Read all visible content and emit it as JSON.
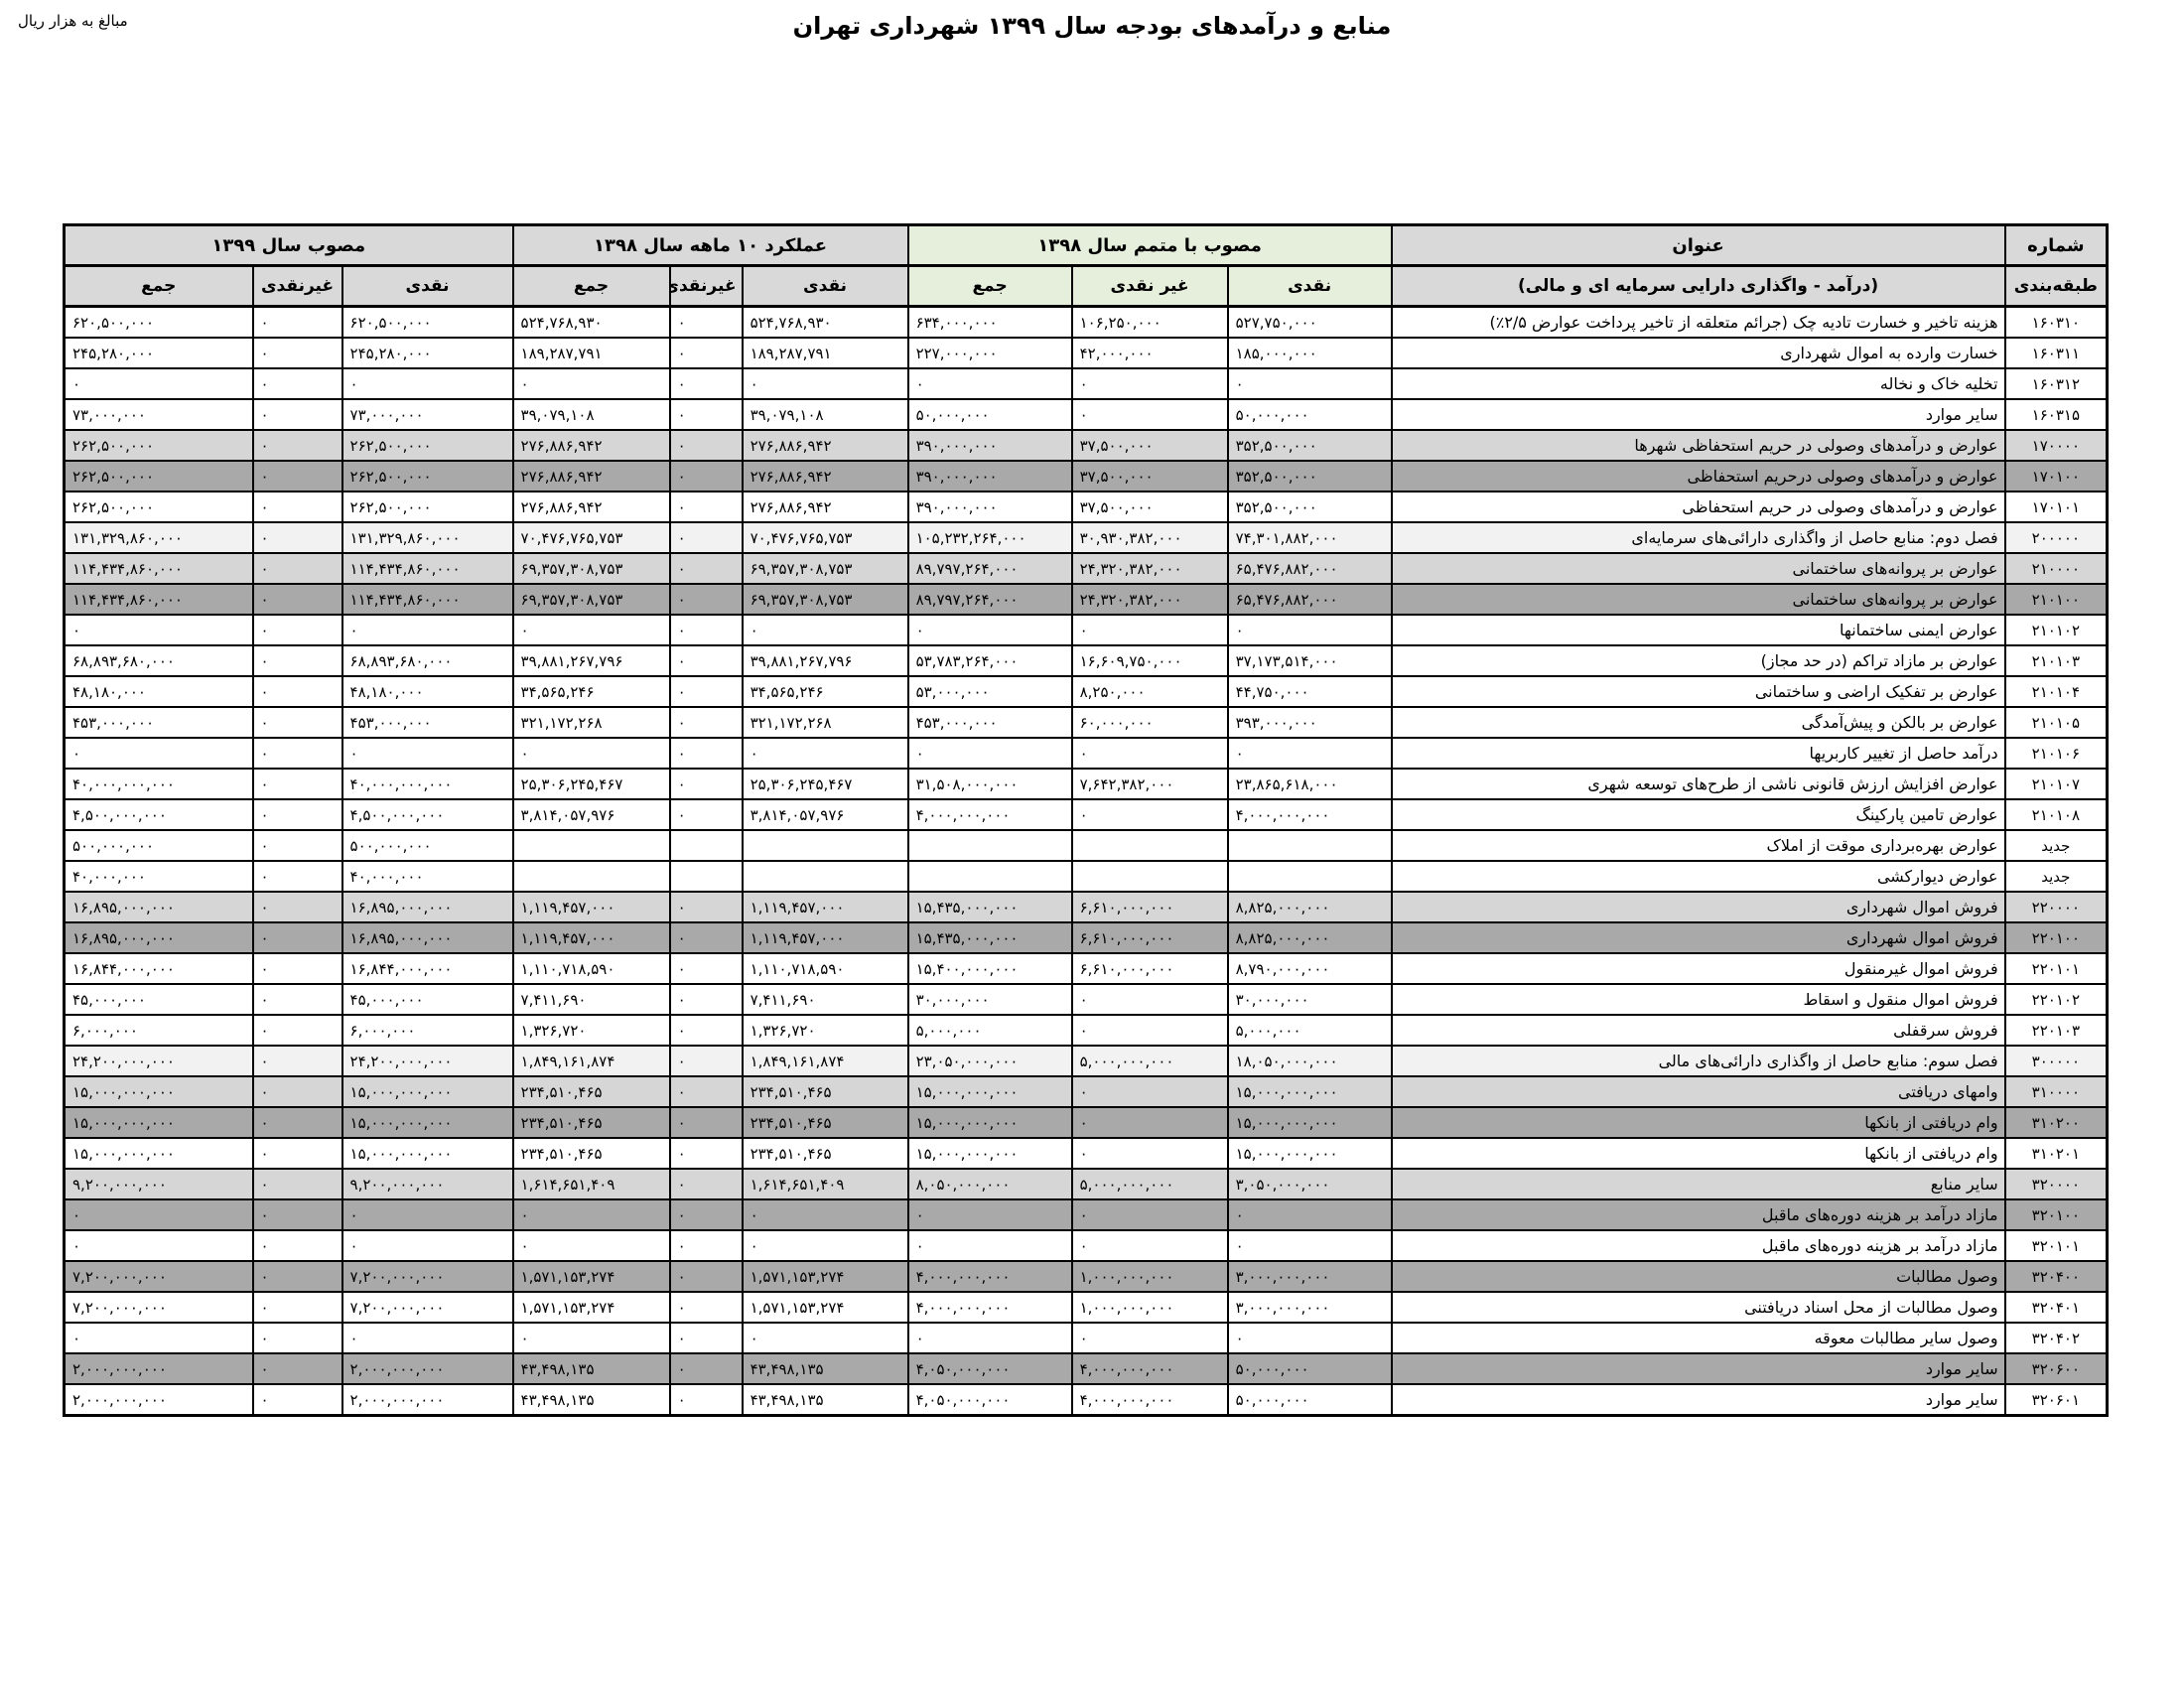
{
  "meta": {
    "title": "منابع و درآمدهای بودجه سال ۱۳۹۹ شهرداری تهران",
    "unit_note": "مبالغ به هزار ریال"
  },
  "colors": {
    "header_gray": "#d9d9d9",
    "header_green": "#e6efdc",
    "row_chapter": "#f2f2f2",
    "row_group": "#d6d6d6",
    "row_subgroup": "#a9a9a9"
  },
  "table": {
    "code_header": {
      "line1": "شماره",
      "line2": "طبقه‌بندی"
    },
    "title_header": {
      "line1": "عنوان",
      "line2": "(درآمد - واگذاری دارایی سرمایه ای و مالی)"
    },
    "col_groups": [
      {
        "label": "مصوب با متمم سال ۱۳۹۸",
        "cols": [
          "نقدی",
          "غیر نقدی",
          "جمع"
        ]
      },
      {
        "label": "عملکرد ۱۰ ماهه سال ۱۳۹۸",
        "cols": [
          "نقدی",
          "غیرنقدی",
          "جمع"
        ]
      },
      {
        "label": "مصوب سال ۱۳۹۹",
        "cols": [
          "نقدی",
          "غیرنقدی",
          "جمع"
        ]
      }
    ],
    "rows": [
      {
        "code": "۱۶۰۳۱۰",
        "title": "هزینه تاخیر و خسارت تادیه چک (جرائم متعلقه از تاخیر پرداخت عوارض ۲/۵٪)",
        "level": "leaf",
        "y1398_supp": {
          "cash": "۵۲۷,۷۵۰,۰۰۰",
          "noncash": "۱۰۶,۲۵۰,۰۰۰",
          "total": "۶۳۴,۰۰۰,۰۰۰"
        },
        "y1398_perf": {
          "cash": "۵۲۴,۷۶۸,۹۳۰",
          "noncash": "۰",
          "total": "۵۲۴,۷۶۸,۹۳۰"
        },
        "y1399": {
          "cash": "۶۲۰,۵۰۰,۰۰۰",
          "noncash": "۰",
          "total": "۶۲۰,۵۰۰,۰۰۰"
        }
      },
      {
        "code": "۱۶۰۳۱۱",
        "title": "خسارت وارده به اموال شهرداری",
        "level": "leaf",
        "y1398_supp": {
          "cash": "۱۸۵,۰۰۰,۰۰۰",
          "noncash": "۴۲,۰۰۰,۰۰۰",
          "total": "۲۲۷,۰۰۰,۰۰۰"
        },
        "y1398_perf": {
          "cash": "۱۸۹,۲۸۷,۷۹۱",
          "noncash": "۰",
          "total": "۱۸۹,۲۸۷,۷۹۱"
        },
        "y1399": {
          "cash": "۲۴۵,۲۸۰,۰۰۰",
          "noncash": "۰",
          "total": "۲۴۵,۲۸۰,۰۰۰"
        }
      },
      {
        "code": "۱۶۰۳۱۲",
        "title": "تخلیه خاک و نخاله",
        "level": "leaf",
        "y1398_supp": {
          "cash": "۰",
          "noncash": "۰",
          "total": "۰"
        },
        "y1398_perf": {
          "cash": "۰",
          "noncash": "۰",
          "total": "۰"
        },
        "y1399": {
          "cash": "۰",
          "noncash": "۰",
          "total": "۰"
        }
      },
      {
        "code": "۱۶۰۳۱۵",
        "title": "سایر موارد",
        "level": "leaf",
        "y1398_supp": {
          "cash": "۵۰,۰۰۰,۰۰۰",
          "noncash": "۰",
          "total": "۵۰,۰۰۰,۰۰۰"
        },
        "y1398_perf": {
          "cash": "۳۹,۰۷۹,۱۰۸",
          "noncash": "۰",
          "total": "۳۹,۰۷۹,۱۰۸"
        },
        "y1399": {
          "cash": "۷۳,۰۰۰,۰۰۰",
          "noncash": "۰",
          "total": "۷۳,۰۰۰,۰۰۰"
        }
      },
      {
        "code": "۱۷۰۰۰۰",
        "title": "عوارض و درآمدهای وصولی در حریم استحفاظی شهرها",
        "level": "group",
        "y1398_supp": {
          "cash": "۳۵۲,۵۰۰,۰۰۰",
          "noncash": "۳۷,۵۰۰,۰۰۰",
          "total": "۳۹۰,۰۰۰,۰۰۰"
        },
        "y1398_perf": {
          "cash": "۲۷۶,۸۸۶,۹۴۲",
          "noncash": "۰",
          "total": "۲۷۶,۸۸۶,۹۴۲"
        },
        "y1399": {
          "cash": "۲۶۲,۵۰۰,۰۰۰",
          "noncash": "۰",
          "total": "۲۶۲,۵۰۰,۰۰۰"
        }
      },
      {
        "code": "۱۷۰۱۰۰",
        "title": "عوارض و درآمدهای وصولی درحریم استحفاظی",
        "level": "subgroup",
        "y1398_supp": {
          "cash": "۳۵۲,۵۰۰,۰۰۰",
          "noncash": "۳۷,۵۰۰,۰۰۰",
          "total": "۳۹۰,۰۰۰,۰۰۰"
        },
        "y1398_perf": {
          "cash": "۲۷۶,۸۸۶,۹۴۲",
          "noncash": "۰",
          "total": "۲۷۶,۸۸۶,۹۴۲"
        },
        "y1399": {
          "cash": "۲۶۲,۵۰۰,۰۰۰",
          "noncash": "۰",
          "total": "۲۶۲,۵۰۰,۰۰۰"
        }
      },
      {
        "code": "۱۷۰۱۰۱",
        "title": "عوارض و درآمدهای وصولی در حریم استحفاظی",
        "level": "leaf",
        "y1398_supp": {
          "cash": "۳۵۲,۵۰۰,۰۰۰",
          "noncash": "۳۷,۵۰۰,۰۰۰",
          "total": "۳۹۰,۰۰۰,۰۰۰"
        },
        "y1398_perf": {
          "cash": "۲۷۶,۸۸۶,۹۴۲",
          "noncash": "۰",
          "total": "۲۷۶,۸۸۶,۹۴۲"
        },
        "y1399": {
          "cash": "۲۶۲,۵۰۰,۰۰۰",
          "noncash": "۰",
          "total": "۲۶۲,۵۰۰,۰۰۰"
        }
      },
      {
        "code": "۲۰۰۰۰۰",
        "title": "فصل دوم: منابع حاصل از واگذاری دارائی‌های سرمایه‌ای",
        "level": "chapter",
        "y1398_supp": {
          "cash": "۷۴,۳۰۱,۸۸۲,۰۰۰",
          "noncash": "۳۰,۹۳۰,۳۸۲,۰۰۰",
          "total": "۱۰۵,۲۳۲,۲۶۴,۰۰۰"
        },
        "y1398_perf": {
          "cash": "۷۰,۴۷۶,۷۶۵,۷۵۳",
          "noncash": "۰",
          "total": "۷۰,۴۷۶,۷۶۵,۷۵۳"
        },
        "y1399": {
          "cash": "۱۳۱,۳۲۹,۸۶۰,۰۰۰",
          "noncash": "۰",
          "total": "۱۳۱,۳۲۹,۸۶۰,۰۰۰"
        }
      },
      {
        "code": "۲۱۰۰۰۰",
        "title": "عوارض بر پروانه‌های ساختمانی",
        "level": "group",
        "y1398_supp": {
          "cash": "۶۵,۴۷۶,۸۸۲,۰۰۰",
          "noncash": "۲۴,۳۲۰,۳۸۲,۰۰۰",
          "total": "۸۹,۷۹۷,۲۶۴,۰۰۰"
        },
        "y1398_perf": {
          "cash": "۶۹,۳۵۷,۳۰۸,۷۵۳",
          "noncash": "۰",
          "total": "۶۹,۳۵۷,۳۰۸,۷۵۳"
        },
        "y1399": {
          "cash": "۱۱۴,۴۳۴,۸۶۰,۰۰۰",
          "noncash": "۰",
          "total": "۱۱۴,۴۳۴,۸۶۰,۰۰۰"
        }
      },
      {
        "code": "۲۱۰۱۰۰",
        "title": "عوارض بر پروانه‌های ساختمانی",
        "level": "subgroup",
        "y1398_supp": {
          "cash": "۶۵,۴۷۶,۸۸۲,۰۰۰",
          "noncash": "۲۴,۳۲۰,۳۸۲,۰۰۰",
          "total": "۸۹,۷۹۷,۲۶۴,۰۰۰"
        },
        "y1398_perf": {
          "cash": "۶۹,۳۵۷,۳۰۸,۷۵۳",
          "noncash": "۰",
          "total": "۶۹,۳۵۷,۳۰۸,۷۵۳"
        },
        "y1399": {
          "cash": "۱۱۴,۴۳۴,۸۶۰,۰۰۰",
          "noncash": "۰",
          "total": "۱۱۴,۴۳۴,۸۶۰,۰۰۰"
        }
      },
      {
        "code": "۲۱۰۱۰۲",
        "title": "عوارض ایمنی ساختمانها",
        "level": "leaf",
        "y1398_supp": {
          "cash": "۰",
          "noncash": "۰",
          "total": "۰"
        },
        "y1398_perf": {
          "cash": "۰",
          "noncash": "۰",
          "total": "۰"
        },
        "y1399": {
          "cash": "۰",
          "noncash": "۰",
          "total": "۰"
        }
      },
      {
        "code": "۲۱۰۱۰۳",
        "title": "عوارض بر مازاد تراکم (در حد مجاز)",
        "level": "leaf",
        "y1398_supp": {
          "cash": "۳۷,۱۷۳,۵۱۴,۰۰۰",
          "noncash": "۱۶,۶۰۹,۷۵۰,۰۰۰",
          "total": "۵۳,۷۸۳,۲۶۴,۰۰۰"
        },
        "y1398_perf": {
          "cash": "۳۹,۸۸۱,۲۶۷,۷۹۶",
          "noncash": "۰",
          "total": "۳۹,۸۸۱,۲۶۷,۷۹۶"
        },
        "y1399": {
          "cash": "۶۸,۸۹۳,۶۸۰,۰۰۰",
          "noncash": "۰",
          "total": "۶۸,۸۹۳,۶۸۰,۰۰۰"
        }
      },
      {
        "code": "۲۱۰۱۰۴",
        "title": "عوارض بر تفکیک اراضی و ساختمانی",
        "level": "leaf",
        "y1398_supp": {
          "cash": "۴۴,۷۵۰,۰۰۰",
          "noncash": "۸,۲۵۰,۰۰۰",
          "total": "۵۳,۰۰۰,۰۰۰"
        },
        "y1398_perf": {
          "cash": "۳۴,۵۶۵,۲۴۶",
          "noncash": "۰",
          "total": "۳۴,۵۶۵,۲۴۶"
        },
        "y1399": {
          "cash": "۴۸,۱۸۰,۰۰۰",
          "noncash": "۰",
          "total": "۴۸,۱۸۰,۰۰۰"
        }
      },
      {
        "code": "۲۱۰۱۰۵",
        "title": "عوارض بر بالکن و پیش‌آمدگی",
        "level": "leaf",
        "y1398_supp": {
          "cash": "۳۹۳,۰۰۰,۰۰۰",
          "noncash": "۶۰,۰۰۰,۰۰۰",
          "total": "۴۵۳,۰۰۰,۰۰۰"
        },
        "y1398_perf": {
          "cash": "۳۲۱,۱۷۲,۲۶۸",
          "noncash": "۰",
          "total": "۳۲۱,۱۷۲,۲۶۸"
        },
        "y1399": {
          "cash": "۴۵۳,۰۰۰,۰۰۰",
          "noncash": "۰",
          "total": "۴۵۳,۰۰۰,۰۰۰"
        }
      },
      {
        "code": "۲۱۰۱۰۶",
        "title": "درآمد حاصل از تغییر کاربریها",
        "level": "leaf",
        "y1398_supp": {
          "cash": "۰",
          "noncash": "۰",
          "total": "۰"
        },
        "y1398_perf": {
          "cash": "۰",
          "noncash": "۰",
          "total": "۰"
        },
        "y1399": {
          "cash": "۰",
          "noncash": "۰",
          "total": "۰"
        }
      },
      {
        "code": "۲۱۰۱۰۷",
        "title": "عوارض افزایش ارزش قانونی ناشی از طرح‌های توسعه شهری",
        "level": "leaf",
        "y1398_supp": {
          "cash": "۲۳,۸۶۵,۶۱۸,۰۰۰",
          "noncash": "۷,۶۴۲,۳۸۲,۰۰۰",
          "total": "۳۱,۵۰۸,۰۰۰,۰۰۰"
        },
        "y1398_perf": {
          "cash": "۲۵,۳۰۶,۲۴۵,۴۶۷",
          "noncash": "۰",
          "total": "۲۵,۳۰۶,۲۴۵,۴۶۷"
        },
        "y1399": {
          "cash": "۴۰,۰۰۰,۰۰۰,۰۰۰",
          "noncash": "۰",
          "total": "۴۰,۰۰۰,۰۰۰,۰۰۰"
        }
      },
      {
        "code": "۲۱۰۱۰۸",
        "title": "عوارض تامین پارکینگ",
        "level": "leaf",
        "y1398_supp": {
          "cash": "۴,۰۰۰,۰۰۰,۰۰۰",
          "noncash": "۰",
          "total": "۴,۰۰۰,۰۰۰,۰۰۰"
        },
        "y1398_perf": {
          "cash": "۳,۸۱۴,۰۵۷,۹۷۶",
          "noncash": "۰",
          "total": "۳,۸۱۴,۰۵۷,۹۷۶"
        },
        "y1399": {
          "cash": "۴,۵۰۰,۰۰۰,۰۰۰",
          "noncash": "۰",
          "total": "۴,۵۰۰,۰۰۰,۰۰۰"
        }
      },
      {
        "code": "جدید",
        "title": "عوارض بهره‌برداری موقت از املاک",
        "level": "leaf",
        "y1398_supp": {
          "cash": "",
          "noncash": "",
          "total": ""
        },
        "y1398_perf": {
          "cash": "",
          "noncash": "",
          "total": ""
        },
        "y1399": {
          "cash": "۵۰۰,۰۰۰,۰۰۰",
          "noncash": "۰",
          "total": "۵۰۰,۰۰۰,۰۰۰"
        }
      },
      {
        "code": "جدید",
        "title": "عوارض دیوارکشی",
        "level": "leaf",
        "y1398_supp": {
          "cash": "",
          "noncash": "",
          "total": ""
        },
        "y1398_perf": {
          "cash": "",
          "noncash": "",
          "total": ""
        },
        "y1399": {
          "cash": "۴۰,۰۰۰,۰۰۰",
          "noncash": "۰",
          "total": "۴۰,۰۰۰,۰۰۰"
        }
      },
      {
        "code": "۲۲۰۰۰۰",
        "title": "فروش اموال شهرداری",
        "level": "group",
        "y1398_supp": {
          "cash": "۸,۸۲۵,۰۰۰,۰۰۰",
          "noncash": "۶,۶۱۰,۰۰۰,۰۰۰",
          "total": "۱۵,۴۳۵,۰۰۰,۰۰۰"
        },
        "y1398_perf": {
          "cash": "۱,۱۱۹,۴۵۷,۰۰۰",
          "noncash": "۰",
          "total": "۱,۱۱۹,۴۵۷,۰۰۰"
        },
        "y1399": {
          "cash": "۱۶,۸۹۵,۰۰۰,۰۰۰",
          "noncash": "۰",
          "total": "۱۶,۸۹۵,۰۰۰,۰۰۰"
        }
      },
      {
        "code": "۲۲۰۱۰۰",
        "title": "فروش اموال شهرداری",
        "level": "subgroup",
        "y1398_supp": {
          "cash": "۸,۸۲۵,۰۰۰,۰۰۰",
          "noncash": "۶,۶۱۰,۰۰۰,۰۰۰",
          "total": "۱۵,۴۳۵,۰۰۰,۰۰۰"
        },
        "y1398_perf": {
          "cash": "۱,۱۱۹,۴۵۷,۰۰۰",
          "noncash": "۰",
          "total": "۱,۱۱۹,۴۵۷,۰۰۰"
        },
        "y1399": {
          "cash": "۱۶,۸۹۵,۰۰۰,۰۰۰",
          "noncash": "۰",
          "total": "۱۶,۸۹۵,۰۰۰,۰۰۰"
        }
      },
      {
        "code": "۲۲۰۱۰۱",
        "title": "فروش اموال غیرمنقول",
        "level": "leaf",
        "y1398_supp": {
          "cash": "۸,۷۹۰,۰۰۰,۰۰۰",
          "noncash": "۶,۶۱۰,۰۰۰,۰۰۰",
          "total": "۱۵,۴۰۰,۰۰۰,۰۰۰"
        },
        "y1398_perf": {
          "cash": "۱,۱۱۰,۷۱۸,۵۹۰",
          "noncash": "۰",
          "total": "۱,۱۱۰,۷۱۸,۵۹۰"
        },
        "y1399": {
          "cash": "۱۶,۸۴۴,۰۰۰,۰۰۰",
          "noncash": "۰",
          "total": "۱۶,۸۴۴,۰۰۰,۰۰۰"
        }
      },
      {
        "code": "۲۲۰۱۰۲",
        "title": "فروش اموال منقول و اسقاط",
        "level": "leaf",
        "y1398_supp": {
          "cash": "۳۰,۰۰۰,۰۰۰",
          "noncash": "۰",
          "total": "۳۰,۰۰۰,۰۰۰"
        },
        "y1398_perf": {
          "cash": "۷,۴۱۱,۶۹۰",
          "noncash": "۰",
          "total": "۷,۴۱۱,۶۹۰"
        },
        "y1399": {
          "cash": "۴۵,۰۰۰,۰۰۰",
          "noncash": "۰",
          "total": "۴۵,۰۰۰,۰۰۰"
        }
      },
      {
        "code": "۲۲۰۱۰۳",
        "title": "فروش سرقفلی",
        "level": "leaf",
        "y1398_supp": {
          "cash": "۵,۰۰۰,۰۰۰",
          "noncash": "۰",
          "total": "۵,۰۰۰,۰۰۰"
        },
        "y1398_perf": {
          "cash": "۱,۳۲۶,۷۲۰",
          "noncash": "۰",
          "total": "۱,۳۲۶,۷۲۰"
        },
        "y1399": {
          "cash": "۶,۰۰۰,۰۰۰",
          "noncash": "۰",
          "total": "۶,۰۰۰,۰۰۰"
        }
      },
      {
        "code": "۳۰۰۰۰۰",
        "title": "فصل سوم: منابع حاصل از واگذاری دارائی‌های مالی",
        "level": "chapter",
        "y1398_supp": {
          "cash": "۱۸,۰۵۰,۰۰۰,۰۰۰",
          "noncash": "۵,۰۰۰,۰۰۰,۰۰۰",
          "total": "۲۳,۰۵۰,۰۰۰,۰۰۰"
        },
        "y1398_perf": {
          "cash": "۱,۸۴۹,۱۶۱,۸۷۴",
          "noncash": "۰",
          "total": "۱,۸۴۹,۱۶۱,۸۷۴"
        },
        "y1399": {
          "cash": "۲۴,۲۰۰,۰۰۰,۰۰۰",
          "noncash": "۰",
          "total": "۲۴,۲۰۰,۰۰۰,۰۰۰"
        }
      },
      {
        "code": "۳۱۰۰۰۰",
        "title": "وامهای دریافتی",
        "level": "group",
        "y1398_supp": {
          "cash": "۱۵,۰۰۰,۰۰۰,۰۰۰",
          "noncash": "۰",
          "total": "۱۵,۰۰۰,۰۰۰,۰۰۰"
        },
        "y1398_perf": {
          "cash": "۲۳۴,۵۱۰,۴۶۵",
          "noncash": "۰",
          "total": "۲۳۴,۵۱۰,۴۶۵"
        },
        "y1399": {
          "cash": "۱۵,۰۰۰,۰۰۰,۰۰۰",
          "noncash": "۰",
          "total": "۱۵,۰۰۰,۰۰۰,۰۰۰"
        }
      },
      {
        "code": "۳۱۰۲۰۰",
        "title": "وام دریافتی از بانکها",
        "level": "subgroup",
        "y1398_supp": {
          "cash": "۱۵,۰۰۰,۰۰۰,۰۰۰",
          "noncash": "۰",
          "total": "۱۵,۰۰۰,۰۰۰,۰۰۰"
        },
        "y1398_perf": {
          "cash": "۲۳۴,۵۱۰,۴۶۵",
          "noncash": "۰",
          "total": "۲۳۴,۵۱۰,۴۶۵"
        },
        "y1399": {
          "cash": "۱۵,۰۰۰,۰۰۰,۰۰۰",
          "noncash": "۰",
          "total": "۱۵,۰۰۰,۰۰۰,۰۰۰"
        }
      },
      {
        "code": "۳۱۰۲۰۱",
        "title": "وام دریافتی از بانکها",
        "level": "leaf",
        "y1398_supp": {
          "cash": "۱۵,۰۰۰,۰۰۰,۰۰۰",
          "noncash": "۰",
          "total": "۱۵,۰۰۰,۰۰۰,۰۰۰"
        },
        "y1398_perf": {
          "cash": "۲۳۴,۵۱۰,۴۶۵",
          "noncash": "۰",
          "total": "۲۳۴,۵۱۰,۴۶۵"
        },
        "y1399": {
          "cash": "۱۵,۰۰۰,۰۰۰,۰۰۰",
          "noncash": "۰",
          "total": "۱۵,۰۰۰,۰۰۰,۰۰۰"
        }
      },
      {
        "code": "۳۲۰۰۰۰",
        "title": "سایر منابع",
        "level": "group",
        "y1398_supp": {
          "cash": "۳,۰۵۰,۰۰۰,۰۰۰",
          "noncash": "۵,۰۰۰,۰۰۰,۰۰۰",
          "total": "۸,۰۵۰,۰۰۰,۰۰۰"
        },
        "y1398_perf": {
          "cash": "۱,۶۱۴,۶۵۱,۴۰۹",
          "noncash": "۰",
          "total": "۱,۶۱۴,۶۵۱,۴۰۹"
        },
        "y1399": {
          "cash": "۹,۲۰۰,۰۰۰,۰۰۰",
          "noncash": "۰",
          "total": "۹,۲۰۰,۰۰۰,۰۰۰"
        }
      },
      {
        "code": "۳۲۰۱۰۰",
        "title": "مازاد درآمد بر هزینه دوره‌های ماقبل",
        "level": "subgroup",
        "y1398_supp": {
          "cash": "۰",
          "noncash": "۰",
          "total": "۰"
        },
        "y1398_perf": {
          "cash": "۰",
          "noncash": "۰",
          "total": "۰"
        },
        "y1399": {
          "cash": "۰",
          "noncash": "۰",
          "total": "۰"
        }
      },
      {
        "code": "۳۲۰۱۰۱",
        "title": "مازاد درآمد بر هزینه دوره‌های ماقبل",
        "level": "leaf",
        "y1398_supp": {
          "cash": "۰",
          "noncash": "۰",
          "total": "۰"
        },
        "y1398_perf": {
          "cash": "۰",
          "noncash": "۰",
          "total": "۰"
        },
        "y1399": {
          "cash": "۰",
          "noncash": "۰",
          "total": "۰"
        }
      },
      {
        "code": "۳۲۰۴۰۰",
        "title": "وصول مطالبات",
        "level": "subgroup",
        "y1398_supp": {
          "cash": "۳,۰۰۰,۰۰۰,۰۰۰",
          "noncash": "۱,۰۰۰,۰۰۰,۰۰۰",
          "total": "۴,۰۰۰,۰۰۰,۰۰۰"
        },
        "y1398_perf": {
          "cash": "۱,۵۷۱,۱۵۳,۲۷۴",
          "noncash": "۰",
          "total": "۱,۵۷۱,۱۵۳,۲۷۴"
        },
        "y1399": {
          "cash": "۷,۲۰۰,۰۰۰,۰۰۰",
          "noncash": "۰",
          "total": "۷,۲۰۰,۰۰۰,۰۰۰"
        }
      },
      {
        "code": "۳۲۰۴۰۱",
        "title": "وصول مطالبات از محل اسناد دریافتنی",
        "level": "leaf",
        "y1398_supp": {
          "cash": "۳,۰۰۰,۰۰۰,۰۰۰",
          "noncash": "۱,۰۰۰,۰۰۰,۰۰۰",
          "total": "۴,۰۰۰,۰۰۰,۰۰۰"
        },
        "y1398_perf": {
          "cash": "۱,۵۷۱,۱۵۳,۲۷۴",
          "noncash": "۰",
          "total": "۱,۵۷۱,۱۵۳,۲۷۴"
        },
        "y1399": {
          "cash": "۷,۲۰۰,۰۰۰,۰۰۰",
          "noncash": "۰",
          "total": "۷,۲۰۰,۰۰۰,۰۰۰"
        }
      },
      {
        "code": "۳۲۰۴۰۲",
        "title": "وصول سایر مطالبات معوقه",
        "level": "leaf",
        "y1398_supp": {
          "cash": "۰",
          "noncash": "۰",
          "total": "۰"
        },
        "y1398_perf": {
          "cash": "۰",
          "noncash": "۰",
          "total": "۰"
        },
        "y1399": {
          "cash": "۰",
          "noncash": "۰",
          "total": "۰"
        }
      },
      {
        "code": "۳۲۰۶۰۰",
        "title": "سایر موارد",
        "level": "subgroup",
        "y1398_supp": {
          "cash": "۵۰,۰۰۰,۰۰۰",
          "noncash": "۴,۰۰۰,۰۰۰,۰۰۰",
          "total": "۴,۰۵۰,۰۰۰,۰۰۰"
        },
        "y1398_perf": {
          "cash": "۴۳,۴۹۸,۱۳۵",
          "noncash": "۰",
          "total": "۴۳,۴۹۸,۱۳۵"
        },
        "y1399": {
          "cash": "۲,۰۰۰,۰۰۰,۰۰۰",
          "noncash": "۰",
          "total": "۲,۰۰۰,۰۰۰,۰۰۰"
        }
      },
      {
        "code": "۳۲۰۶۰۱",
        "title": "سایر موارد",
        "level": "leaf",
        "y1398_supp": {
          "cash": "۵۰,۰۰۰,۰۰۰",
          "noncash": "۴,۰۰۰,۰۰۰,۰۰۰",
          "total": "۴,۰۵۰,۰۰۰,۰۰۰"
        },
        "y1398_perf": {
          "cash": "۴۳,۴۹۸,۱۳۵",
          "noncash": "۰",
          "total": "۴۳,۴۹۸,۱۳۵"
        },
        "y1399": {
          "cash": "۲,۰۰۰,۰۰۰,۰۰۰",
          "noncash": "۰",
          "total": "۲,۰۰۰,۰۰۰,۰۰۰"
        }
      }
    ]
  }
}
